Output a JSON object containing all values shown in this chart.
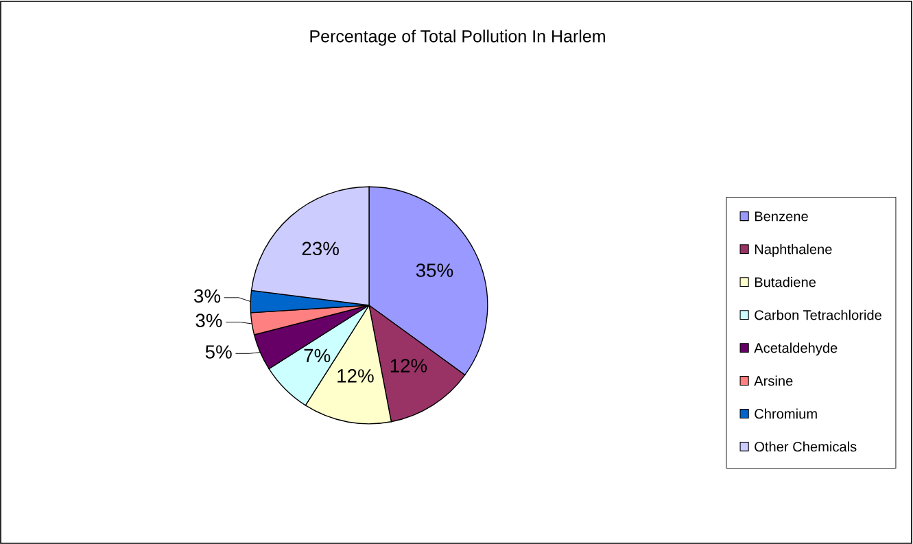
{
  "chart_data": {
    "type": "pie",
    "title": "Percentage of Total Pollution In Harlem",
    "categories": [
      "Benzene",
      "Naphthalene",
      "Butadiene",
      "Carbon Tetrachloride",
      "Acetaldehyde",
      "Arsine",
      "Chromium",
      "Other Chemicals"
    ],
    "values": [
      35,
      12,
      12,
      7,
      5,
      3,
      3,
      23
    ],
    "value_labels": [
      "35%",
      "12%",
      "12%",
      "7%",
      "5%",
      "3%",
      "3%",
      "23%"
    ],
    "colors": [
      "#9999ff",
      "#993366",
      "#ffffcc",
      "#ccffff",
      "#660066",
      "#ff8080",
      "#0066cc",
      "#ccccff"
    ],
    "legend": "right"
  }
}
